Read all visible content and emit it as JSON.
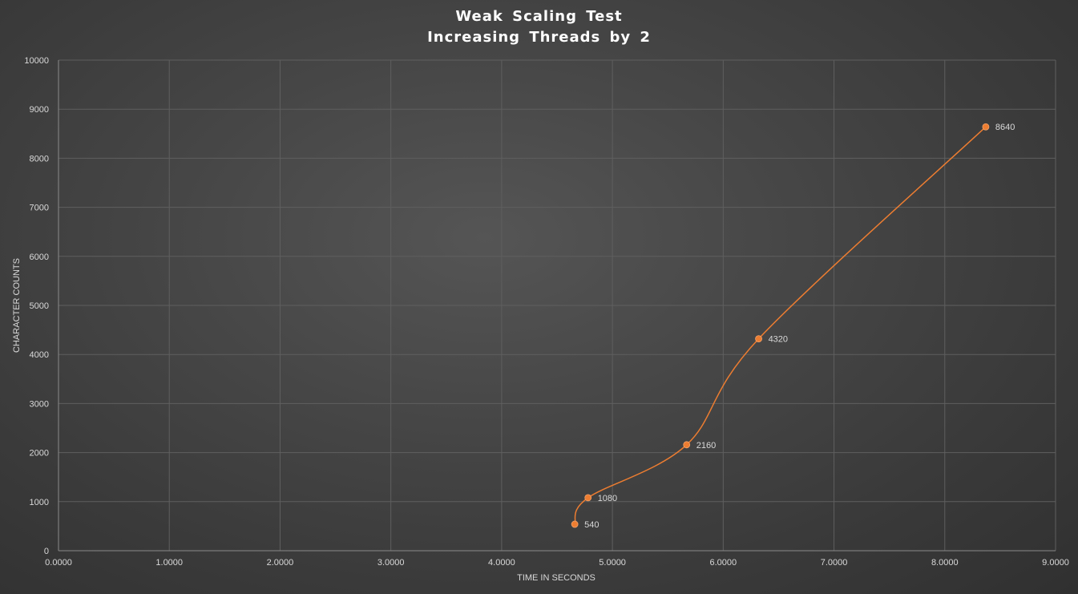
{
  "chart_data": {
    "type": "scatter",
    "title_lines": [
      "Weak Scaling Test",
      "Increasing Threads by 2"
    ],
    "xlabel": "TIME IN SECONDS",
    "ylabel": "CHARACTER COUNTS",
    "xlim": [
      0,
      9
    ],
    "ylim": [
      0,
      10000
    ],
    "x_ticks": [
      "0.0000",
      "1.0000",
      "2.0000",
      "3.0000",
      "4.0000",
      "5.0000",
      "6.0000",
      "7.0000",
      "8.0000",
      "9.0000"
    ],
    "y_ticks": [
      "0",
      "1000",
      "2000",
      "3000",
      "4000",
      "5000",
      "6000",
      "7000",
      "8000",
      "9000",
      "10000"
    ],
    "grid": true,
    "smoothed_line": true,
    "series": [
      {
        "points": [
          {
            "x": 4.66,
            "y": 540,
            "label": "540"
          },
          {
            "x": 4.78,
            "y": 1080,
            "label": "1080"
          },
          {
            "x": 5.67,
            "y": 2160,
            "label": "2160"
          },
          {
            "x": 6.32,
            "y": 4320,
            "label": "4320"
          },
          {
            "x": 8.37,
            "y": 8640,
            "label": "8640"
          }
        ],
        "color": "#ed7d31"
      }
    ],
    "colors": {
      "background": "#3a3a3a",
      "grid": "#5f5f5f",
      "axis_text": "#d9d9d9",
      "title_text": "#ffffff",
      "series": "#ed7d31"
    }
  }
}
